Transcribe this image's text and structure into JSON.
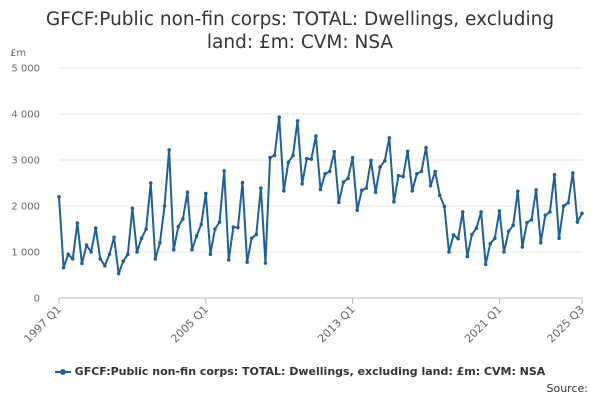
{
  "chart_data": {
    "type": "line",
    "title": "GFCF:Public non-fin corps: TOTAL: Dwellings, excluding land: £m: CVM: NSA",
    "ylabel": "£m",
    "xlabel": "",
    "ylim": [
      0,
      5000
    ],
    "yticks": [
      0,
      1000,
      2000,
      3000,
      4000,
      5000
    ],
    "ytick_labels": [
      "0",
      "1 000",
      "2 000",
      "3 000",
      "4 000",
      "5 000"
    ],
    "xtick_labels": [
      "1997 Q1",
      "2005 Q1",
      "2013 Q1",
      "2021 Q1",
      "2025 Q3"
    ],
    "grid": true,
    "legend_position": "bottom",
    "color": "#206095",
    "series": [
      {
        "name": "GFCF:Public non-fin corps: TOTAL: Dwellings, excluding land: £m: CVM: NSA",
        "x_start": "1997 Q1",
        "values": [
          2200,
          660,
          950,
          850,
          1630,
          750,
          1150,
          1000,
          1520,
          850,
          700,
          950,
          1320,
          530,
          800,
          950,
          1950,
          1000,
          1300,
          1500,
          2500,
          850,
          1200,
          2000,
          3220,
          1050,
          1550,
          1720,
          2300,
          1050,
          1350,
          1600,
          2270,
          950,
          1500,
          1650,
          2760,
          830,
          1540,
          1530,
          2510,
          780,
          1300,
          1380,
          2390,
          760,
          3050,
          3100,
          3930,
          2330,
          2950,
          3100,
          3850,
          2480,
          3030,
          3020,
          3520,
          2360,
          2700,
          2750,
          3180,
          2080,
          2520,
          2600,
          3050,
          1910,
          2340,
          2390,
          2990,
          2300,
          2850,
          2980,
          3480,
          2090,
          2660,
          2640,
          3190,
          2330,
          2700,
          2750,
          3270,
          2440,
          2750,
          2230,
          1990,
          1000,
          1370,
          1290,
          1870,
          900,
          1380,
          1520,
          1870,
          730,
          1180,
          1300,
          1890,
          1000,
          1450,
          1580,
          2320,
          1110,
          1640,
          1700,
          2350,
          1200,
          1800,
          1870,
          2680,
          1300,
          2000,
          2070,
          2720,
          1650,
          1840
        ]
      }
    ]
  },
  "legend": {
    "label": "GFCF:Public non-fin corps: TOTAL: Dwellings, excluding land: £m: CVM: NSA"
  },
  "source_text": "Source:"
}
